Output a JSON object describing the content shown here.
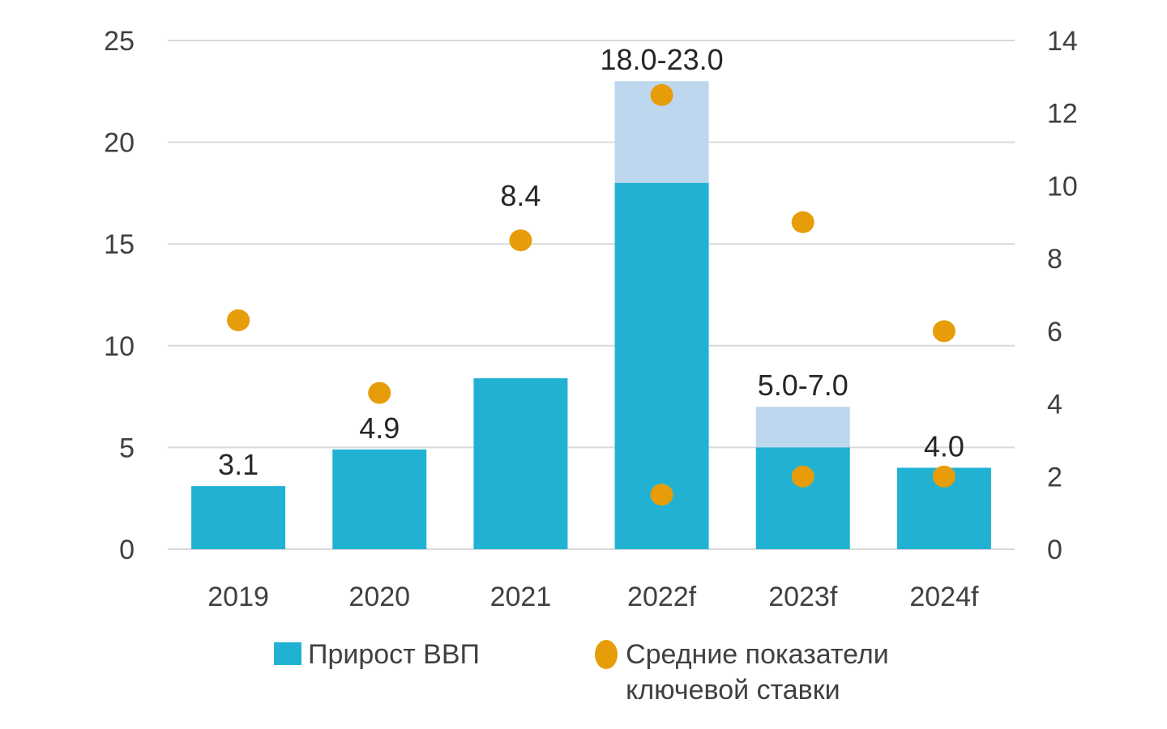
{
  "chart_data": {
    "type": "bar",
    "categories": [
      "2019",
      "2020",
      "2021",
      "2022f",
      "2023f",
      "2024f"
    ],
    "series": [
      {
        "name": "Прирост ВВП",
        "axis": "left",
        "values": [
          3.1,
          4.9,
          8.4,
          18.0,
          5.0,
          4.0
        ],
        "range_upper": [
          null,
          null,
          null,
          23.0,
          7.0,
          null
        ],
        "color": "#21b2d3",
        "range_color": "#bdd7ee"
      },
      {
        "name": "Средние показатели ключевой ставки",
        "axis": "right",
        "type": "scatter",
        "points": [
          {
            "category": "2019",
            "value": 6.3
          },
          {
            "category": "2020",
            "value": 4.3
          },
          {
            "category": "2021",
            "value": 8.5
          },
          {
            "category": "2022f",
            "value": 12.5
          },
          {
            "category": "2022f",
            "value": 1.5
          },
          {
            "category": "2023f",
            "value": 9.0
          },
          {
            "category": "2023f",
            "value": 2.0
          },
          {
            "category": "2024f",
            "value": 6.0
          },
          {
            "category": "2024f",
            "value": 2.0
          }
        ],
        "color": "#e69d09"
      }
    ],
    "data_labels": [
      "3.1",
      "4.9",
      "8.4",
      "18.0-23.0",
      "5.0-7.0",
      "4.0"
    ],
    "left_axis": {
      "ylim": [
        0,
        25
      ],
      "ticks": [
        "0",
        "5",
        "10",
        "15",
        "20",
        "25"
      ]
    },
    "right_axis": {
      "ylim": [
        0,
        14
      ],
      "ticks": [
        "0",
        "2",
        "4",
        "6",
        "8",
        "10",
        "12",
        "14"
      ]
    },
    "grid": true,
    "legend_position": "bottom"
  },
  "legend": {
    "bar_label": "Прирост ВВП",
    "dot_label": "Средние показатели ключевой ставки"
  }
}
